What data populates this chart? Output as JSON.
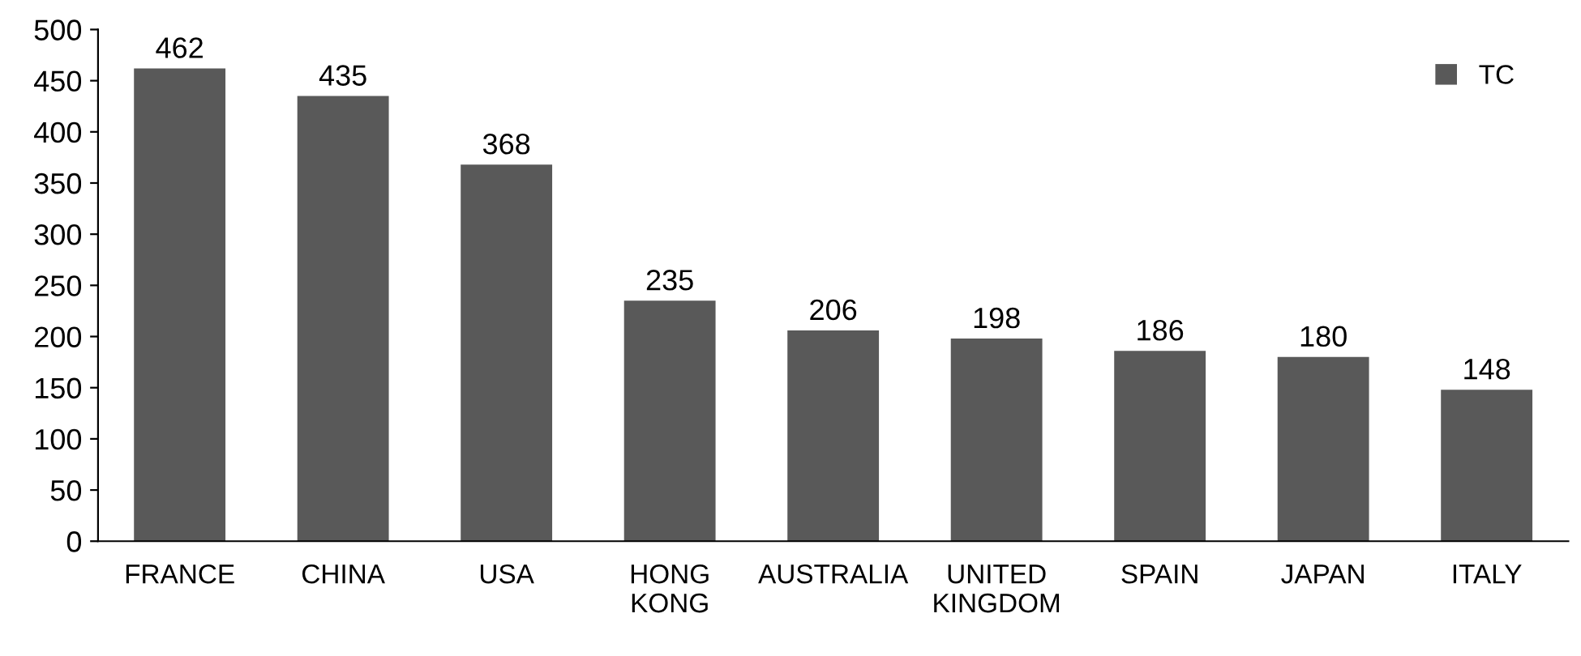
{
  "chart_data": {
    "type": "bar",
    "categories": [
      "FRANCE",
      "CHINA",
      "USA",
      "HONG\nKONG",
      "AUSTRALIA",
      "UNITED\nKINGDOM",
      "SPAIN",
      "JAPAN",
      "ITALY"
    ],
    "series": [
      {
        "name": "TC",
        "color": "#595959",
        "values": [
          462,
          435,
          368,
          235,
          206,
          198,
          186,
          180,
          148
        ]
      }
    ],
    "ylim": [
      0,
      500
    ],
    "yticks": [
      0,
      50,
      100,
      150,
      200,
      250,
      300,
      350,
      400,
      450,
      500
    ],
    "data_labels": true,
    "legend": "top right",
    "grid": false
  }
}
